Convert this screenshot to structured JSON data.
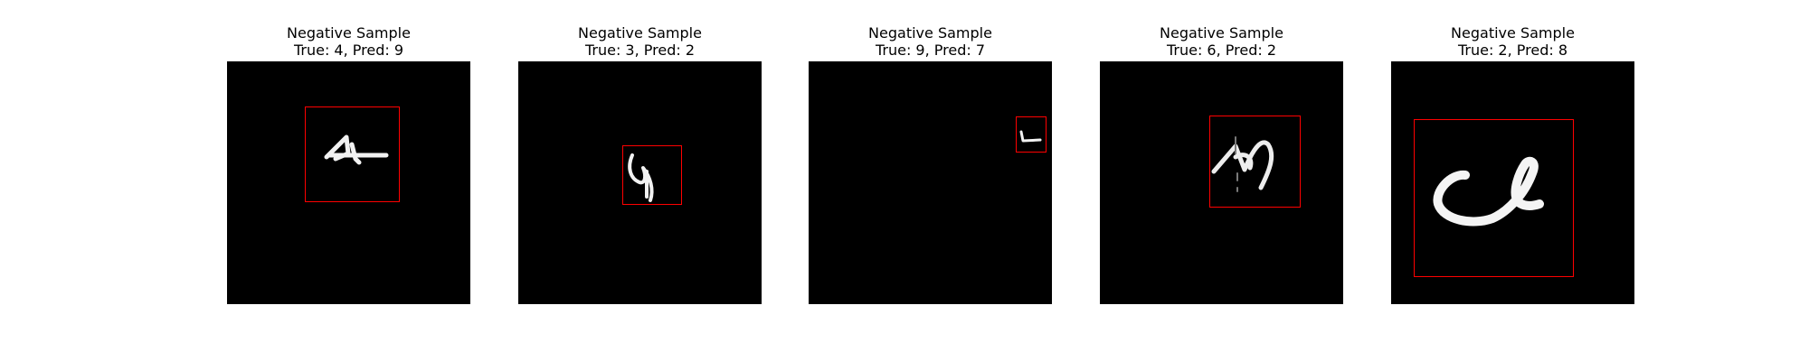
{
  "figure": {
    "background": "#ffffff",
    "panels": [
      {
        "title": "Negative Sample",
        "subtitle": "True: 4, Pred: 9",
        "true_label": 4,
        "pred_label": 9,
        "image_background": "#000000",
        "box_color": "#ff0000"
      },
      {
        "title": "Negative Sample",
        "subtitle": "True: 3, Pred: 2",
        "true_label": 3,
        "pred_label": 2,
        "image_background": "#000000",
        "box_color": "#ff0000"
      },
      {
        "title": "Negative Sample",
        "subtitle": "True: 9, Pred: 7",
        "true_label": 9,
        "pred_label": 7,
        "image_background": "#000000",
        "box_color": "#ff0000"
      },
      {
        "title": "Negative Sample",
        "subtitle": "True: 6, Pred: 2",
        "true_label": 6,
        "pred_label": 2,
        "image_background": "#000000",
        "box_color": "#ff0000"
      },
      {
        "title": "Negative Sample",
        "subtitle": "True: 2, Pred: 8",
        "true_label": 2,
        "pred_label": 8,
        "image_background": "#000000",
        "box_color": "#ff0000"
      }
    ]
  }
}
